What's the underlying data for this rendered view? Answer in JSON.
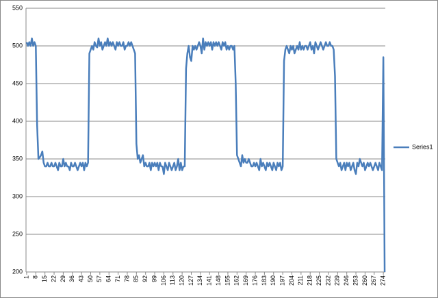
{
  "chart_data": {
    "type": "line",
    "categories": [
      1,
      null,
      null,
      null,
      null,
      null,
      null,
      8,
      null,
      null,
      null,
      null,
      null,
      null,
      15,
      null,
      null,
      null,
      null,
      null,
      null,
      22,
      null,
      null,
      null,
      null,
      null,
      null,
      29,
      null,
      null,
      null,
      null,
      null,
      null,
      36,
      null,
      null,
      null,
      null,
      null,
      null,
      43,
      null,
      null,
      null,
      null,
      null,
      null,
      50,
      null,
      null,
      null,
      null,
      null,
      null,
      57,
      null,
      null,
      null,
      null,
      null,
      null,
      64,
      null,
      null,
      null,
      null,
      null,
      null,
      71,
      null,
      null,
      null,
      null,
      null,
      null,
      78,
      null,
      null,
      null,
      null,
      null,
      null,
      85,
      null,
      null,
      null,
      null,
      null,
      null,
      92,
      null,
      null,
      null,
      null,
      null,
      null,
      99,
      null,
      null,
      null,
      null,
      null,
      null,
      106,
      null,
      null,
      null,
      null,
      null,
      null,
      113,
      null,
      null,
      null,
      null,
      null,
      null,
      120,
      null,
      null,
      null,
      null,
      null,
      null,
      127,
      null,
      null,
      null,
      null,
      null,
      null,
      134,
      null,
      null,
      null,
      null,
      null,
      null,
      141,
      null,
      null,
      null,
      null,
      null,
      null,
      148,
      null,
      null,
      null,
      null,
      null,
      null,
      155,
      null,
      null,
      null,
      null,
      null,
      null,
      162,
      null,
      null,
      null,
      null,
      null,
      null,
      169,
      null,
      null,
      null,
      null,
      null,
      null,
      176,
      null,
      null,
      null,
      null,
      null,
      null,
      183,
      null,
      null,
      null,
      null,
      null,
      null,
      190,
      null,
      null,
      null,
      null,
      null,
      null,
      197,
      null,
      null,
      null,
      null,
      null,
      null,
      204,
      null,
      null,
      null,
      null,
      null,
      null,
      211,
      null,
      null,
      null,
      null,
      null,
      null,
      218,
      null,
      null,
      null,
      null,
      null,
      null,
      225,
      null,
      null,
      null,
      null,
      null,
      null,
      232,
      null,
      null,
      null,
      null,
      null,
      null,
      239,
      null,
      null,
      null,
      null,
      null,
      null,
      246,
      null,
      null,
      null,
      null,
      null,
      null,
      253,
      null,
      null,
      null,
      null,
      null,
      null,
      260,
      null,
      null,
      null,
      null,
      null,
      null,
      267,
      null,
      null,
      null,
      null,
      null,
      null,
      274,
      null
    ],
    "series": [
      {
        "name": "Series1",
        "color": "#4a7ebb",
        "values": [
          505,
          500,
          505,
          500,
          510,
          500,
          505,
          500,
          395,
          350,
          352,
          355,
          360,
          345,
          340,
          340,
          345,
          340,
          340,
          345,
          340,
          340,
          345,
          340,
          335,
          345,
          340,
          340,
          350,
          340,
          345,
          340,
          340,
          335,
          345,
          340,
          340,
          345,
          340,
          335,
          340,
          345,
          340,
          345,
          335,
          345,
          340,
          345,
          490,
          495,
          500,
          495,
          505,
          500,
          498,
          510,
          500,
          505,
          495,
          500,
          505,
          500,
          510,
          500,
          505,
          500,
          505,
          500,
          495,
          505,
          500,
          505,
          500,
          500,
          505,
          495,
          500,
          500,
          505,
          500,
          505,
          500,
          495,
          490,
          370,
          350,
          355,
          345,
          350,
          355,
          340,
          345,
          340,
          340,
          345,
          335,
          345,
          340,
          345,
          340,
          345,
          335,
          345,
          340,
          340,
          330,
          345,
          340,
          335,
          345,
          340,
          335,
          340,
          345,
          335,
          340,
          350,
          335,
          345,
          335,
          340,
          340,
          470,
          490,
          500,
          485,
          480,
          500,
          495,
          500,
          495,
          500,
          505,
          500,
          490,
          510,
          495,
          505,
          500,
          505,
          500,
          505,
          495,
          505,
          500,
          505,
          500,
          505,
          500,
          495,
          505,
          500,
          505,
          495,
          500,
          495,
          500,
          500,
          495,
          500,
          450,
          355,
          350,
          345,
          340,
          355,
          345,
          350,
          345,
          345,
          350,
          345,
          340,
          340,
          345,
          340,
          345,
          340,
          335,
          350,
          340,
          345,
          340,
          335,
          345,
          340,
          345,
          340,
          335,
          345,
          340,
          335,
          345,
          340,
          345,
          335,
          340,
          480,
          495,
          500,
          495,
          490,
          500,
          495,
          500,
          490,
          495,
          500,
          495,
          505,
          495,
          500,
          495,
          500,
          500,
          495,
          500,
          505,
          495,
          500,
          490,
          505,
          500,
          495,
          500,
          505,
          500,
          495,
          500,
          505,
          500,
          500,
          505,
          500,
          500,
          495,
          460,
          350,
          345,
          340,
          345,
          335,
          340,
          345,
          335,
          345,
          340,
          345,
          335,
          340,
          345,
          335,
          330,
          345,
          340,
          350,
          345,
          340,
          345,
          335,
          340,
          345,
          340,
          345,
          340,
          335,
          340,
          345,
          340,
          335,
          345,
          340,
          335,
          485,
          200
        ]
      }
    ],
    "ylim": [
      200,
      550
    ],
    "yticks": [
      200,
      250,
      300,
      350,
      400,
      450,
      500,
      550
    ],
    "grid": true,
    "legend": "right"
  }
}
